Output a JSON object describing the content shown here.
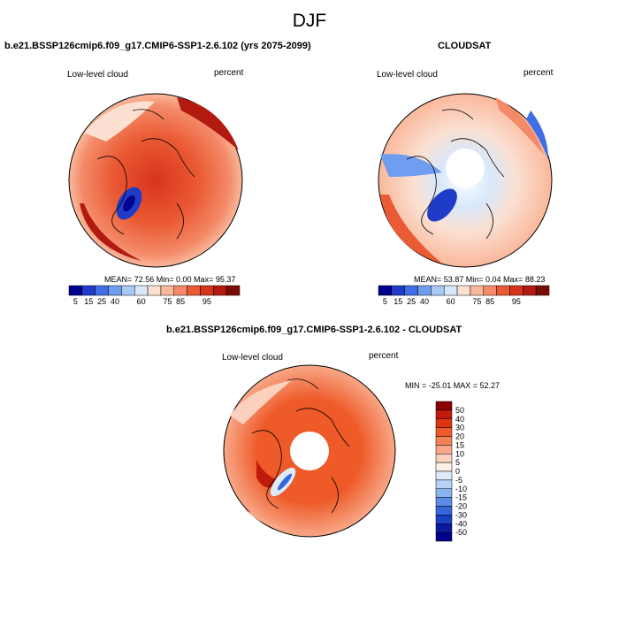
{
  "title": "DJF",
  "panels": [
    {
      "title": "b.e21.BSSP126cmip6.f09_g17.CMIP6-SSP1-2.6.102 (yrs 2075-2099)",
      "variable": "Low-level cloud",
      "units": "percent",
      "stats": "MEAN=  72.56  Min=   0.00  Max=  95.37"
    },
    {
      "title": "CLOUDSAT",
      "variable": "Low-level cloud",
      "units": "percent",
      "stats": "MEAN=  53.87  Min=   0.04  Max=  88.23"
    },
    {
      "title": "b.e21.BSSP126cmip6.f09_g17.CMIP6-SSP1-2.6.102 - CLOUDSAT",
      "variable": "Low-level cloud",
      "units": "percent",
      "stats": "MIN = -25.01 MAX =  52.27"
    }
  ],
  "colorbar_abs": {
    "labels": [
      "5",
      "15",
      "25",
      "40",
      "60",
      "75",
      "85",
      "95"
    ],
    "colors": [
      "#00008e",
      "#1f3cc8",
      "#3f6ee6",
      "#6f9df0",
      "#a8c8f6",
      "#d8e8fb",
      "#fbe0d2",
      "#f9b89b",
      "#f48a68",
      "#ea5a34",
      "#d8341c",
      "#b21a10",
      "#7a0c06"
    ]
  },
  "colorbar_diff": {
    "labels": [
      "50",
      "40",
      "30",
      "20",
      "15",
      "10",
      "5",
      "0",
      "-5",
      "-10",
      "-15",
      "-20",
      "-30",
      "-40",
      "-50"
    ],
    "colors": [
      "#8e0000",
      "#c01a0a",
      "#dc3410",
      "#ee5a28",
      "#f48256",
      "#f8a888",
      "#fbd0bc",
      "#fdf0e8",
      "#ddeafa",
      "#b8d2f6",
      "#8ab2f0",
      "#5a8ce8",
      "#3466dc",
      "#1a40c4",
      "#0a1a9e",
      "#00008a"
    ]
  }
}
